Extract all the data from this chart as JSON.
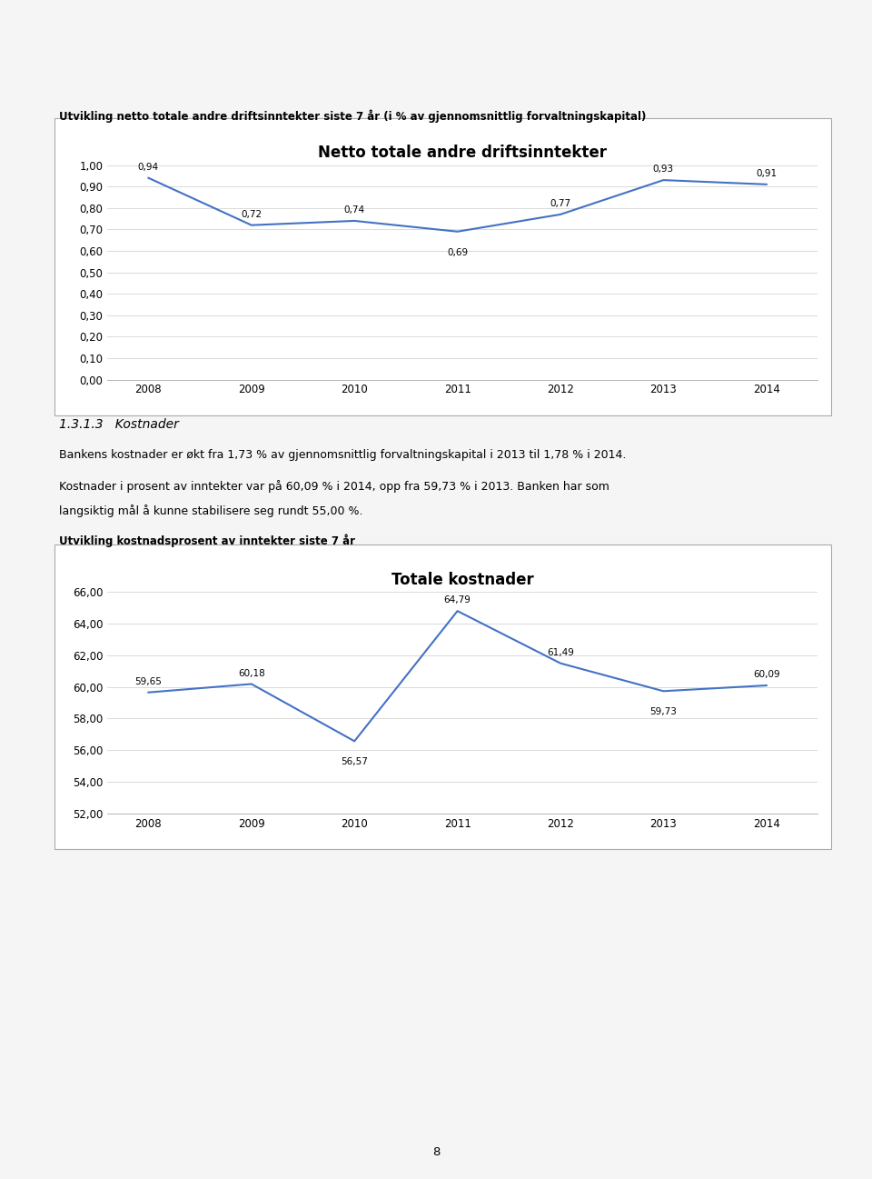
{
  "page_bg": "#f5f5f5",
  "chart_bg": "#ffffff",
  "chart_border": "#d0d0d0",
  "line_color": "#4472C4",
  "chart1_title": "Netto totale andre driftsinntekter",
  "chart1_years": [
    2008,
    2009,
    2010,
    2011,
    2012,
    2013,
    2014
  ],
  "chart1_values": [
    0.94,
    0.72,
    0.74,
    0.69,
    0.77,
    0.93,
    0.91
  ],
  "chart1_ylim": [
    0.0,
    1.0
  ],
  "chart1_yticks": [
    0.0,
    0.1,
    0.2,
    0.3,
    0.4,
    0.5,
    0.6,
    0.7,
    0.8,
    0.9,
    1.0
  ],
  "chart1_ytick_labels": [
    "0,00",
    "0,10",
    "0,20",
    "0,30",
    "0,40",
    "0,50",
    "0,60",
    "0,70",
    "0,80",
    "0,90",
    "1,00"
  ],
  "chart1_legend": "Netto totale andre driftsinntekter",
  "chart1_annot_labels": [
    "0,94",
    "0,72",
    "0,74",
    "0,69",
    "0,77",
    "0,93",
    "0,91"
  ],
  "chart1_annot_offsets": [
    5,
    5,
    5,
    -13,
    5,
    5,
    5
  ],
  "chart2_title": "Totale kostnader",
  "chart2_years": [
    2008,
    2009,
    2010,
    2011,
    2012,
    2013,
    2014
  ],
  "chart2_values": [
    59.65,
    60.18,
    56.57,
    64.79,
    61.49,
    59.73,
    60.09
  ],
  "chart2_ylim": [
    52.0,
    66.0
  ],
  "chart2_yticks": [
    52.0,
    54.0,
    56.0,
    58.0,
    60.0,
    62.0,
    64.0,
    66.0
  ],
  "chart2_ytick_labels": [
    "52,00",
    "54,00",
    "56,00",
    "58,00",
    "60,00",
    "62,00",
    "64,00",
    "66,00"
  ],
  "chart2_legend": "Totale kostnader",
  "chart2_annot_labels": [
    "59,65",
    "60,18",
    "56,57",
    "64,79",
    "61,49",
    "59,73",
    "60,09"
  ],
  "chart2_annot_offsets": [
    5,
    5,
    -13,
    5,
    5,
    -13,
    5
  ],
  "header_line1": "Utvikling netto totale andre driftsinntekter siste 7 år (i % av gjennomsnittlig forvaltningskapital)",
  "section_title": "1.3.1.3   Kostnader",
  "para1": "Bankens kostnader er økt fra 1,73 % av gjennomsnittlig forvaltningskapital i 2013 til 1,78 % i 2014.",
  "para2_line1": "Kostnader i prosent av inntekter var på 60,09 % i 2014, opp fra 59,73 % i 2013. Banken har som",
  "para2_line2": "langsiktig mål å kunne stabilisere seg rundt 55,00 %.",
  "chart2_header": "Utvikling kostnadsprosent av inntekter siste 7 år",
  "page_number": "8",
  "title_fontsize": 12,
  "tick_fontsize": 8.5,
  "legend_fontsize": 7.5,
  "annotation_fontsize": 7.5,
  "header_fontsize": 8.5,
  "section_fontsize": 10,
  "body_fontsize": 9
}
